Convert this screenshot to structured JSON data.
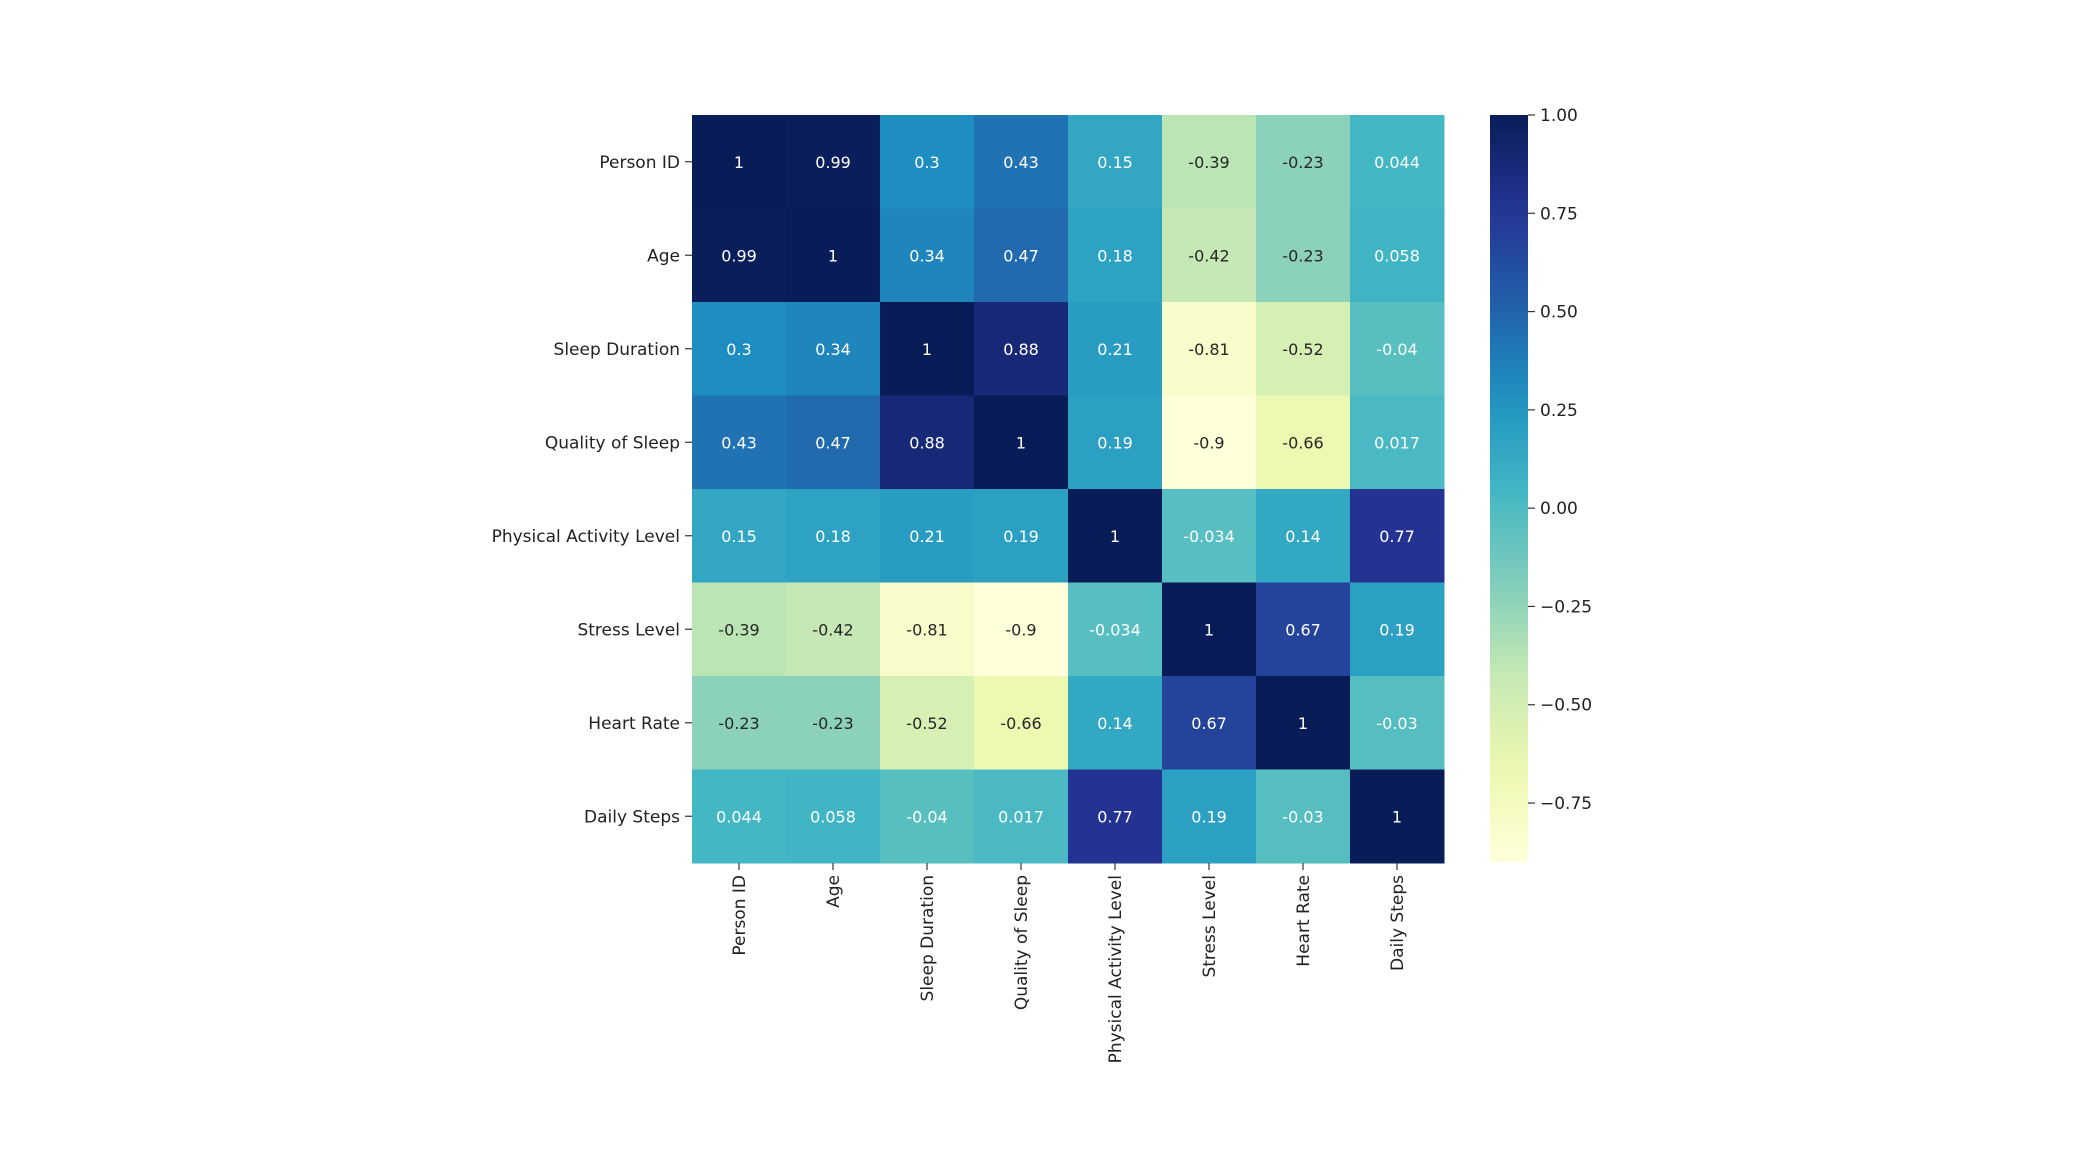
{
  "chart_data": {
    "type": "heatmap",
    "title": "",
    "xlabel": "",
    "ylabel": "",
    "colormap": "YlGnBu",
    "vmin": -0.9,
    "vmax": 1.0,
    "labels": [
      "Person ID",
      "Age",
      "Sleep Duration",
      "Quality of Sleep",
      "Physical Activity Level",
      "Stress Level",
      "Heart Rate",
      "Daily Steps"
    ],
    "matrix": [
      [
        1,
        0.99,
        0.3,
        0.43,
        0.15,
        -0.39,
        -0.23,
        0.044
      ],
      [
        0.99,
        1,
        0.34,
        0.47,
        0.18,
        -0.42,
        -0.23,
        0.058
      ],
      [
        0.3,
        0.34,
        1,
        0.88,
        0.21,
        -0.81,
        -0.52,
        -0.04
      ],
      [
        0.43,
        0.47,
        0.88,
        1,
        0.19,
        -0.9,
        -0.66,
        0.017
      ],
      [
        0.15,
        0.18,
        0.21,
        0.19,
        1,
        -0.034,
        0.14,
        0.77
      ],
      [
        -0.39,
        -0.42,
        -0.81,
        -0.9,
        -0.034,
        1,
        0.67,
        0.19
      ],
      [
        -0.23,
        -0.23,
        -0.52,
        -0.66,
        0.14,
        0.67,
        1,
        -0.03
      ],
      [
        0.044,
        0.058,
        -0.04,
        0.017,
        0.77,
        0.19,
        -0.03,
        1
      ]
    ],
    "annotations": [
      [
        "1",
        "0.99",
        "0.3",
        "0.43",
        "0.15",
        "-0.39",
        "-0.23",
        "0.044"
      ],
      [
        "0.99",
        "1",
        "0.34",
        "0.47",
        "0.18",
        "-0.42",
        "-0.23",
        "0.058"
      ],
      [
        "0.3",
        "0.34",
        "1",
        "0.88",
        "0.21",
        "-0.81",
        "-0.52",
        "-0.04"
      ],
      [
        "0.43",
        "0.47",
        "0.88",
        "1",
        "0.19",
        "-0.9",
        "-0.66",
        "0.017"
      ],
      [
        "0.15",
        "0.18",
        "0.21",
        "0.19",
        "1",
        "-0.034",
        "0.14",
        "0.77"
      ],
      [
        "-0.39",
        "-0.42",
        "-0.81",
        "-0.9",
        "-0.034",
        "1",
        "0.67",
        "0.19"
      ],
      [
        "-0.23",
        "-0.23",
        "-0.52",
        "-0.66",
        "0.14",
        "0.67",
        "1",
        "-0.03"
      ],
      [
        "0.044",
        "0.058",
        "-0.04",
        "0.017",
        "0.77",
        "0.19",
        "-0.03",
        "1"
      ]
    ],
    "colorbar": {
      "ticks": [
        1.0,
        0.75,
        0.5,
        0.25,
        0.0,
        -0.25,
        -0.5,
        -0.75
      ],
      "tick_labels": [
        "1.00",
        "0.75",
        "0.50",
        "0.25",
        "0.00",
        "−0.25",
        "−0.50",
        "−0.75"
      ]
    },
    "legend": "colorbar right",
    "grid": false
  }
}
